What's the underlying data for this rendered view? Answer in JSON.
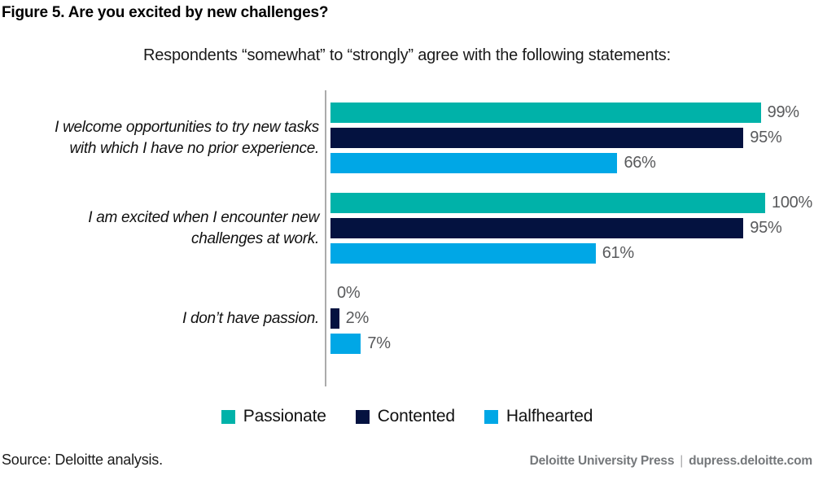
{
  "title": "Figure 5. Are you excited by new challenges?",
  "subtitle": "Respondents “somewhat” to “strongly” agree with the following statements:",
  "chart_data": {
    "type": "bar",
    "orientation": "horizontal",
    "title": "Figure 5. Are you excited by new challenges?",
    "subtitle": "Respondents “somewhat” to “strongly” agree with the following statements:",
    "categories": [
      "I welcome opportunities to try new tasks with which I have no prior experience.",
      "I am excited when I encounter new challenges at work.",
      "I don’t have passion."
    ],
    "category_lines": [
      [
        "I welcome opportunities to try new tasks",
        "with which I have no prior experience."
      ],
      [
        "I am excited when I encounter new",
        "challenges at work."
      ],
      [
        "I don’t have passion."
      ]
    ],
    "series": [
      {
        "name": "Passionate",
        "color": "#00b2a9",
        "values": [
          99,
          100,
          0
        ]
      },
      {
        "name": "Contented",
        "color": "#041240",
        "values": [
          95,
          95,
          2
        ]
      },
      {
        "name": "Halfhearted",
        "color": "#00a7e6",
        "values": [
          66,
          61,
          7
        ]
      }
    ],
    "value_suffix": "%",
    "xlim": [
      0,
      100
    ],
    "grid": false,
    "legend_position": "bottom",
    "value_label_color": "#595a5c",
    "axis_color": "#ababab"
  },
  "legend": {
    "items": [
      {
        "label": "Passionate",
        "color": "#00b2a9"
      },
      {
        "label": "Contented",
        "color": "#041240"
      },
      {
        "label": "Halfhearted",
        "color": "#00a7e6"
      }
    ]
  },
  "footer": {
    "source": "Source: Deloitte analysis.",
    "publisher": "Deloitte University Press",
    "separator": "|",
    "site": "dupress.deloitte.com"
  }
}
